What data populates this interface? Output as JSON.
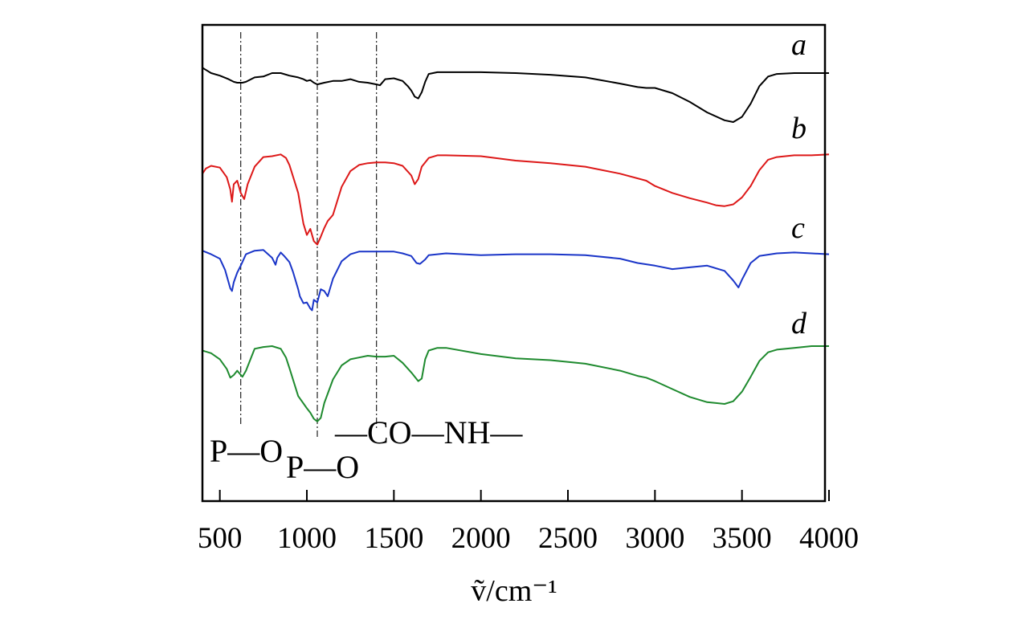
{
  "chart_data": {
    "type": "line",
    "title": "",
    "xlabel": "ṽ/cm⁻¹",
    "ylabel": "",
    "xlim": [
      400,
      4000
    ],
    "ylim": [
      0,
      5
    ],
    "x_ticks": [
      500,
      1000,
      1500,
      2000,
      2500,
      3000,
      3500,
      4000
    ],
    "grid": false,
    "legend": "none; series labelled at right end of each curve",
    "series": [
      {
        "name": "a",
        "color": "#000000",
        "x": [
          400,
          450,
          500,
          550,
          580,
          600,
          630,
          650,
          700,
          750,
          800,
          850,
          900,
          950,
          980,
          1000,
          1020,
          1040,
          1060,
          1100,
          1150,
          1200,
          1250,
          1300,
          1350,
          1400,
          1420,
          1450,
          1500,
          1550,
          1580,
          1600,
          1620,
          1640,
          1660,
          1680,
          1700,
          1750,
          1800,
          2000,
          2200,
          2400,
          2600,
          2800,
          2900,
          2950,
          3000,
          3100,
          3200,
          3300,
          3400,
          3450,
          3500,
          3550,
          3600,
          3650,
          3700,
          3800,
          3900,
          4000
        ],
        "y": [
          4.73,
          4.67,
          4.64,
          4.6,
          4.57,
          4.56,
          4.56,
          4.57,
          4.62,
          4.63,
          4.67,
          4.67,
          4.64,
          4.62,
          4.6,
          4.58,
          4.59,
          4.56,
          4.54,
          4.56,
          4.58,
          4.58,
          4.6,
          4.57,
          4.56,
          4.54,
          4.53,
          4.6,
          4.61,
          4.58,
          4.52,
          4.47,
          4.4,
          4.38,
          4.45,
          4.57,
          4.66,
          4.68,
          4.68,
          4.68,
          4.67,
          4.65,
          4.62,
          4.55,
          4.51,
          4.5,
          4.5,
          4.44,
          4.34,
          4.22,
          4.13,
          4.11,
          4.17,
          4.32,
          4.52,
          4.63,
          4.66,
          4.67,
          4.67,
          4.67
        ]
      },
      {
        "name": "b",
        "color": "#dd1818",
        "x": [
          400,
          420,
          450,
          500,
          540,
          560,
          570,
          580,
          600,
          620,
          640,
          660,
          700,
          750,
          800,
          850,
          880,
          900,
          950,
          980,
          1000,
          1020,
          1040,
          1060,
          1080,
          1100,
          1120,
          1150,
          1200,
          1250,
          1300,
          1350,
          1400,
          1450,
          1500,
          1550,
          1600,
          1620,
          1640,
          1660,
          1700,
          1750,
          1800,
          2000,
          2200,
          2400,
          2600,
          2800,
          2950,
          3000,
          3100,
          3200,
          3300,
          3350,
          3400,
          3450,
          3500,
          3550,
          3600,
          3650,
          3700,
          3800,
          3900,
          4000
        ],
        "y": [
          3.52,
          3.58,
          3.61,
          3.59,
          3.48,
          3.34,
          3.2,
          3.4,
          3.44,
          3.3,
          3.23,
          3.4,
          3.6,
          3.71,
          3.72,
          3.74,
          3.7,
          3.62,
          3.3,
          2.95,
          2.82,
          2.89,
          2.75,
          2.71,
          2.8,
          2.9,
          2.98,
          3.05,
          3.37,
          3.55,
          3.62,
          3.64,
          3.65,
          3.65,
          3.64,
          3.61,
          3.5,
          3.4,
          3.46,
          3.6,
          3.7,
          3.73,
          3.73,
          3.72,
          3.67,
          3.64,
          3.6,
          3.52,
          3.44,
          3.38,
          3.3,
          3.24,
          3.19,
          3.16,
          3.15,
          3.17,
          3.25,
          3.38,
          3.56,
          3.68,
          3.71,
          3.73,
          3.73,
          3.74
        ]
      },
      {
        "name": "c",
        "color": "#1a35c8",
        "x": [
          400,
          450,
          500,
          530,
          560,
          570,
          580,
          600,
          620,
          650,
          700,
          750,
          800,
          820,
          830,
          850,
          870,
          900,
          920,
          950,
          960,
          980,
          1000,
          1020,
          1030,
          1040,
          1060,
          1080,
          1100,
          1120,
          1150,
          1200,
          1250,
          1300,
          1400,
          1500,
          1550,
          1600,
          1630,
          1650,
          1680,
          1700,
          1750,
          1800,
          2000,
          2200,
          2400,
          2600,
          2800,
          2900,
          3000,
          3100,
          3200,
          3300,
          3400,
          3450,
          3480,
          3500,
          3550,
          3600,
          3700,
          3800,
          3900,
          4000
        ],
        "y": [
          2.64,
          2.6,
          2.55,
          2.42,
          2.21,
          2.18,
          2.28,
          2.39,
          2.47,
          2.6,
          2.64,
          2.65,
          2.56,
          2.48,
          2.56,
          2.62,
          2.58,
          2.51,
          2.4,
          2.2,
          2.12,
          2.04,
          2.05,
          1.98,
          1.96,
          2.08,
          2.05,
          2.2,
          2.18,
          2.12,
          2.32,
          2.52,
          2.6,
          2.63,
          2.63,
          2.63,
          2.61,
          2.58,
          2.5,
          2.49,
          2.54,
          2.59,
          2.6,
          2.61,
          2.59,
          2.6,
          2.6,
          2.59,
          2.55,
          2.5,
          2.47,
          2.43,
          2.45,
          2.47,
          2.41,
          2.3,
          2.22,
          2.31,
          2.5,
          2.58,
          2.61,
          2.62,
          2.61,
          2.6
        ]
      },
      {
        "name": "d",
        "color": "#1e8a2e",
        "x": [
          400,
          450,
          500,
          540,
          560,
          580,
          600,
          630,
          650,
          700,
          750,
          800,
          850,
          880,
          900,
          950,
          1000,
          1020,
          1040,
          1060,
          1080,
          1100,
          1150,
          1200,
          1250,
          1300,
          1350,
          1400,
          1450,
          1500,
          1550,
          1600,
          1640,
          1660,
          1680,
          1700,
          1750,
          1800,
          2000,
          2200,
          2400,
          2600,
          2800,
          2900,
          2950,
          3000,
          3100,
          3200,
          3300,
          3400,
          3450,
          3500,
          3550,
          3600,
          3650,
          3700,
          3800,
          3900,
          4000
        ],
        "y": [
          1.5,
          1.47,
          1.4,
          1.29,
          1.19,
          1.22,
          1.27,
          1.2,
          1.27,
          1.52,
          1.54,
          1.55,
          1.52,
          1.42,
          1.3,
          0.98,
          0.84,
          0.79,
          0.72,
          0.69,
          0.73,
          0.9,
          1.17,
          1.33,
          1.4,
          1.42,
          1.44,
          1.43,
          1.43,
          1.44,
          1.36,
          1.25,
          1.15,
          1.18,
          1.4,
          1.5,
          1.53,
          1.53,
          1.46,
          1.41,
          1.39,
          1.35,
          1.27,
          1.21,
          1.19,
          1.15,
          1.06,
          0.97,
          0.91,
          0.89,
          0.92,
          1.03,
          1.2,
          1.38,
          1.48,
          1.51,
          1.53,
          1.55,
          1.55
        ]
      }
    ],
    "reference_lines": [
      {
        "x": 620,
        "label": "P—O"
      },
      {
        "x": 1060,
        "label": "P—O"
      },
      {
        "x": 1400,
        "label": "—CO—NH—"
      }
    ]
  }
}
